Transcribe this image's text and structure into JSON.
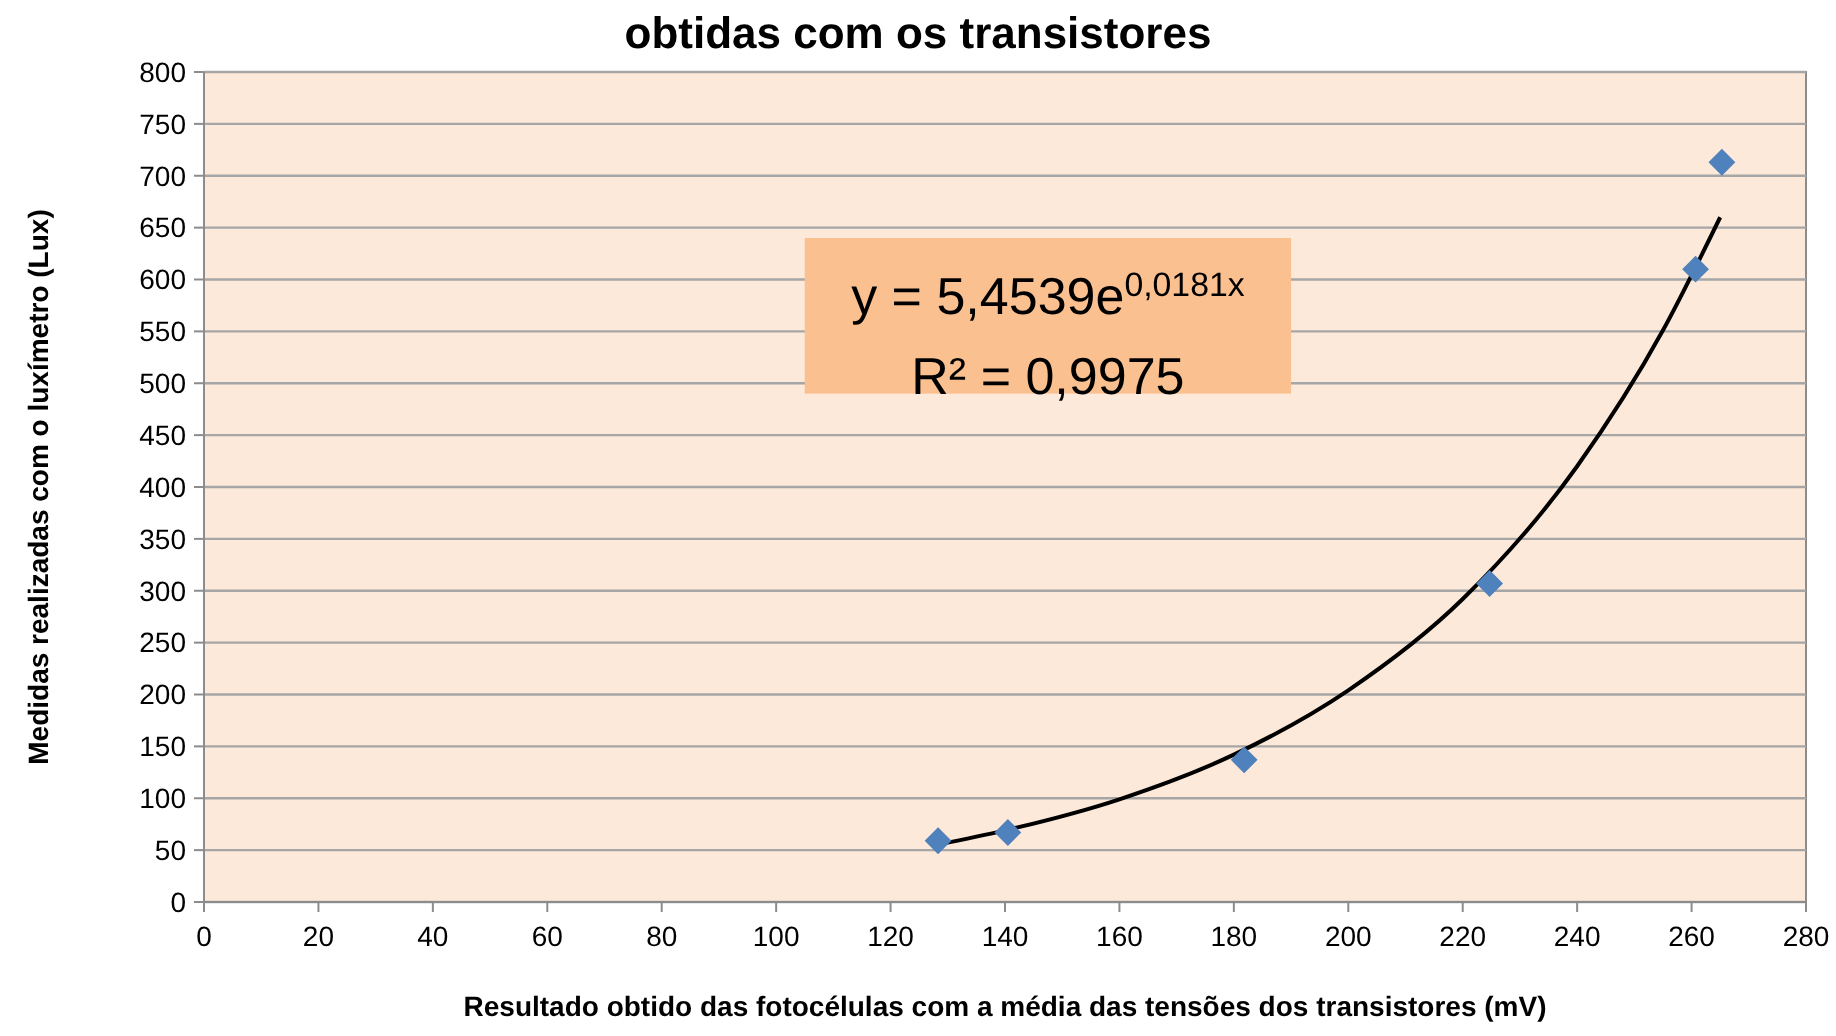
{
  "chart_data": {
    "type": "scatter",
    "title": "obtidas com os transistores",
    "xlabel": "Resultado obtido das fotocélulas com a média das tensões dos transistores (mV)",
    "ylabel": "Medidas realizadas com o luxímetro (Lux)",
    "xlim": [
      0,
      280
    ],
    "xticks": [
      0,
      20,
      40,
      60,
      80,
      100,
      120,
      140,
      160,
      180,
      200,
      220,
      240,
      260,
      280
    ],
    "ylim": [
      0,
      800
    ],
    "yticks": [
      0,
      50,
      100,
      150,
      200,
      250,
      300,
      350,
      400,
      450,
      500,
      550,
      600,
      650,
      700,
      750,
      800
    ],
    "grid": "y",
    "marker": "diamond",
    "series": [
      {
        "color": "#4f81bd",
        "x": [
          128.3,
          140.5,
          181.8,
          224.7,
          260.7,
          265.3
        ],
        "values": [
          59,
          67,
          137,
          307,
          610,
          713
        ]
      },
      {
        "type": "line",
        "color": "#000000",
        "marker": "none",
        "x": [
          128,
          140,
          160,
          180,
          200,
          220,
          240,
          255,
          265
        ],
        "values": [
          55,
          69,
          99,
          142,
          204,
          292,
          420,
          551,
          660
        ]
      }
    ],
    "annotations": [
      "y = 5,4539e$^{0,0181x}$",
      "R² = 0,9975"
    ]
  }
}
